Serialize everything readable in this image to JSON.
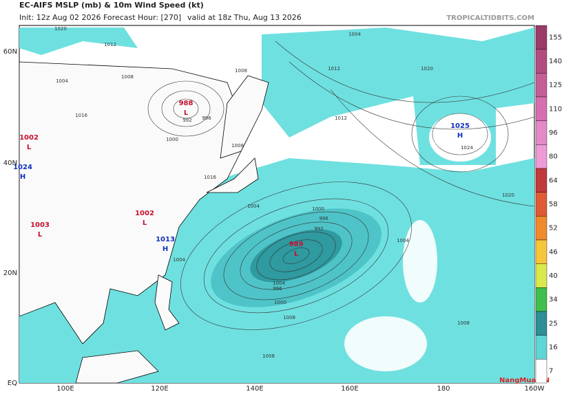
{
  "header": {
    "title": "EC-AIFS MSLP (mb) & 10m Wind Speed (kt)",
    "init": "Init: 12z Aug 02 2026",
    "forecast_hour": "Forecast Hour: [270]",
    "valid": "valid at 18z Thu, Aug 13 2026",
    "site": "TROPICALTIDBITS.COM"
  },
  "lat_labels": [
    "60N",
    "40N",
    "20N",
    "EQ"
  ],
  "lon_labels": [
    "100E",
    "120E",
    "140E",
    "160E",
    "180",
    "160W"
  ],
  "colorbar": {
    "levels": [
      {
        "label": "155",
        "color": "#9c3a6a"
      },
      {
        "label": "140",
        "color": "#b24d82"
      },
      {
        "label": "125",
        "color": "#c45e97"
      },
      {
        "label": "110",
        "color": "#d66fb0"
      },
      {
        "label": "96",
        "color": "#e48ac6"
      },
      {
        "label": "80",
        "color": "#ee9ad6"
      },
      {
        "label": "64",
        "color": "#c0393b"
      },
      {
        "label": "58",
        "color": "#e05a35"
      },
      {
        "label": "52",
        "color": "#f08a2c"
      },
      {
        "label": "46",
        "color": "#f7c53a"
      },
      {
        "label": "40",
        "color": "#d9e84a"
      },
      {
        "label": "34",
        "color": "#3fbf4e"
      },
      {
        "label": "25",
        "color": "#2e8f96"
      },
      {
        "label": "16",
        "color": "#5fd6d6"
      },
      {
        "label": "7",
        "color": "#ffffff"
      }
    ]
  },
  "centers": [
    {
      "pressure": "988",
      "kind": "L"
    },
    {
      "pressure": "1002",
      "kind": "L"
    },
    {
      "pressure": "1024",
      "kind": "H"
    },
    {
      "pressure": "1002",
      "kind": "L"
    },
    {
      "pressure": "1003",
      "kind": "L"
    },
    {
      "pressure": "1013",
      "kind": "H"
    },
    {
      "pressure": "989",
      "kind": "L"
    },
    {
      "pressure": "1025",
      "kind": "H"
    }
  ],
  "isobar_labels": [
    "1020",
    "1012",
    "1004",
    "1008",
    "1016",
    "1008",
    "1012",
    "1020",
    "992",
    "996",
    "1000",
    "1008",
    "1004",
    "1012",
    "1016",
    "1004",
    "1000",
    "996",
    "992",
    "1004",
    "1008",
    "1024",
    "1020",
    "996",
    "1000",
    "1004",
    "1008",
    "1008",
    "1004"
  ],
  "watermark": "NangMua.VN"
}
